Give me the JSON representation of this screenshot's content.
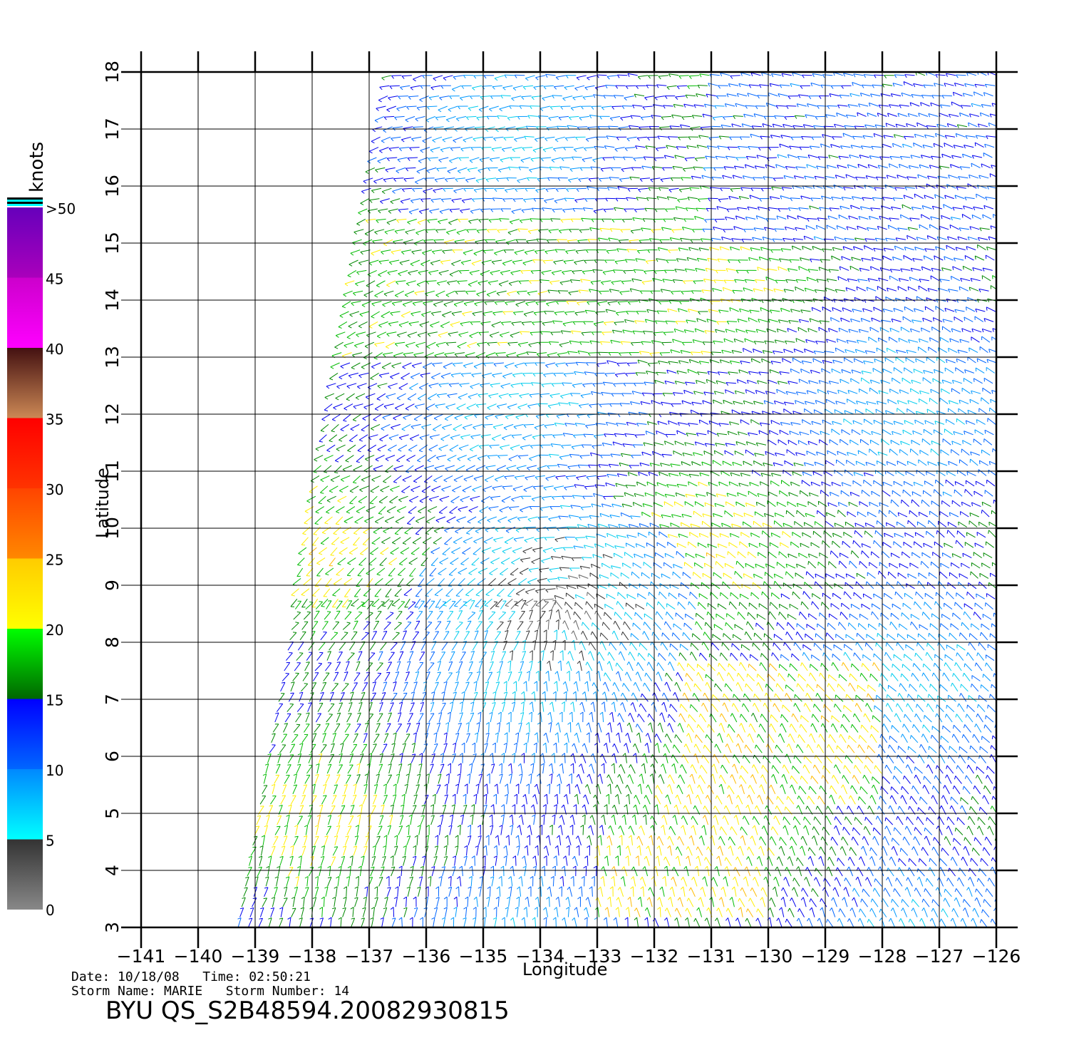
{
  "map": {
    "x_label": "Longitude",
    "y_label": "Latitude",
    "lon_range": [
      -141,
      -126
    ],
    "lat_range": [
      3,
      18
    ],
    "lon_ticks": [
      "−141",
      "−140",
      "−139",
      "−138",
      "−137",
      "−136",
      "−135",
      "−134",
      "−133",
      "−132",
      "−131",
      "−130",
      "−129",
      "−128",
      "−127",
      "−126"
    ],
    "lat_ticks": [
      "3",
      "4",
      "5",
      "6",
      "7",
      "8",
      "9",
      "10",
      "11",
      "12",
      "13",
      "14",
      "15",
      "16",
      "17",
      "18"
    ],
    "grid": true,
    "swath_edge_lon_at_lat3": -139.3,
    "swath_edge_lon_at_lat18": -136.6
  },
  "colorbar": {
    "unit_label": "knots",
    "labels": [
      "0",
      "5",
      "10",
      "15",
      "20",
      "25",
      "30",
      "35",
      "40",
      "45",
      ">50"
    ],
    "bands": [
      {
        "from": 0,
        "to": 5,
        "colors": [
          "#888888",
          "#333333"
        ]
      },
      {
        "from": 5,
        "to": 10,
        "colors": [
          "#00ffff",
          "#0088ff"
        ]
      },
      {
        "from": 10,
        "to": 15,
        "colors": [
          "#0066ff",
          "#0000ff"
        ]
      },
      {
        "from": 15,
        "to": 20,
        "colors": [
          "#006600",
          "#00ff00"
        ]
      },
      {
        "from": 20,
        "to": 25,
        "colors": [
          "#ffff00",
          "#ffcc00"
        ]
      },
      {
        "from": 25,
        "to": 30,
        "colors": [
          "#ff8800",
          "#ff4400"
        ]
      },
      {
        "from": 30,
        "to": 35,
        "colors": [
          "#ff3300",
          "#ff0000"
        ]
      },
      {
        "from": 35,
        "to": 40,
        "colors": [
          "#cc8855",
          "#441111"
        ]
      },
      {
        "from": 40,
        "to": 45,
        "colors": [
          "#ff00ff",
          "#cc00cc"
        ]
      },
      {
        "from": 45,
        "to": 50,
        "colors": [
          "#aa00bb",
          "#6600bb"
        ]
      }
    ]
  },
  "footer": {
    "date_line": "Date: 10/18/08   Time: 02:50:21",
    "storm_line": "Storm Name: MARIE   Storm Number: 14",
    "product_id": "BYU QS_S2B48594.20082930815"
  }
}
